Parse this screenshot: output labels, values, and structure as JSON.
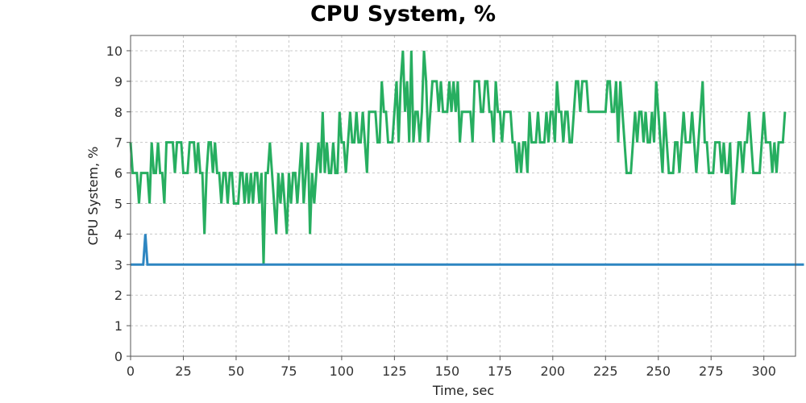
{
  "chart_data": {
    "type": "line",
    "title": "CPU System, %",
    "xlabel": "Time, sec",
    "ylabel": "CPU System, %",
    "xlim": [
      0,
      315
    ],
    "ylim": [
      0,
      10.5
    ],
    "xticks": [
      0,
      25,
      50,
      75,
      100,
      125,
      150,
      175,
      200,
      225,
      250,
      275,
      300
    ],
    "yticks": [
      0,
      1,
      2,
      3,
      4,
      5,
      6,
      7,
      8,
      9,
      10
    ],
    "grid": true,
    "x_start": 0,
    "x_step": 1,
    "series": [
      {
        "color": "#27ae60",
        "values": [
          7,
          6,
          6,
          6,
          5,
          6,
          6,
          6,
          6,
          5,
          7,
          6,
          6,
          7,
          6,
          6,
          5,
          7,
          7,
          7,
          7,
          6,
          7,
          7,
          7,
          6,
          6,
          6,
          7,
          7,
          7,
          6,
          7,
          6,
          6,
          4,
          6,
          7,
          7,
          6,
          7,
          6,
          6,
          5,
          6,
          6,
          5,
          6,
          6,
          5,
          5,
          5,
          6,
          6,
          5,
          6,
          5,
          6,
          5,
          6,
          6,
          5,
          6,
          3,
          6,
          6,
          7,
          6,
          5,
          4,
          6,
          5,
          6,
          5,
          4,
          6,
          5,
          6,
          6,
          5,
          6,
          7,
          5,
          6,
          7,
          4,
          6,
          5,
          6,
          7,
          6,
          8,
          6,
          7,
          6,
          6,
          7,
          6,
          6,
          8,
          7,
          7,
          6,
          7,
          8,
          7,
          7,
          8,
          7,
          7,
          8,
          7,
          6,
          8,
          8,
          8,
          8,
          7,
          7,
          9,
          8,
          8,
          7,
          7,
          7,
          8,
          9,
          7,
          9,
          10,
          8,
          9,
          7,
          10,
          7,
          8,
          8,
          7,
          8,
          10,
          9,
          7,
          8,
          9,
          9,
          9,
          8,
          9,
          8,
          8,
          8,
          9,
          8,
          9,
          8,
          9,
          7,
          8,
          8,
          8,
          8,
          8,
          7,
          9,
          9,
          9,
          8,
          8,
          9,
          9,
          8,
          8,
          7,
          9,
          8,
          8,
          7,
          8,
          8,
          8,
          8,
          7,
          7,
          6,
          7,
          6,
          7,
          7,
          6,
          8,
          7,
          7,
          7,
          8,
          7,
          7,
          7,
          8,
          7,
          8,
          8,
          7,
          9,
          8,
          8,
          7,
          8,
          8,
          7,
          7,
          8,
          9,
          9,
          8,
          9,
          9,
          9,
          8,
          8,
          8,
          8,
          8,
          8,
          8,
          8,
          8,
          9,
          9,
          8,
          8,
          9,
          7,
          9,
          8,
          7,
          6,
          6,
          6,
          7,
          8,
          7,
          8,
          8,
          7,
          8,
          7,
          7,
          8,
          7,
          9,
          8,
          7,
          6,
          8,
          7,
          6,
          6,
          6,
          7,
          7,
          6,
          7,
          8,
          7,
          7,
          7,
          8,
          7,
          6,
          7,
          8,
          9,
          7,
          7,
          6,
          6,
          6,
          7,
          7,
          7,
          6,
          7,
          6,
          6,
          7,
          5,
          5,
          6,
          7,
          7,
          6,
          7,
          7,
          8,
          7,
          6,
          6,
          6,
          6,
          7,
          8,
          7,
          7,
          7,
          6,
          7,
          6,
          7,
          7,
          7,
          8
        ]
      },
      {
        "color": "#2e86c1",
        "values": [
          3,
          3,
          3,
          3,
          3,
          3,
          3,
          4,
          3,
          3,
          3,
          3,
          3,
          3,
          3,
          3,
          3,
          3,
          3,
          3,
          3,
          3,
          3,
          3,
          3,
          3,
          3,
          3,
          3,
          3,
          3,
          3,
          3,
          3,
          3,
          3,
          3,
          3,
          3,
          3,
          3,
          3,
          3,
          3,
          3,
          3,
          3,
          3,
          3,
          3,
          3,
          3,
          3,
          3,
          3,
          3,
          3,
          3,
          3,
          3,
          3,
          3,
          3,
          3,
          3,
          3,
          3,
          3,
          3,
          3,
          3,
          3,
          3,
          3,
          3,
          3,
          3,
          3,
          3,
          3,
          3,
          3,
          3,
          3,
          3,
          3,
          3,
          3,
          3,
          3,
          3,
          3,
          3,
          3,
          3,
          3,
          3,
          3,
          3,
          3,
          3,
          3,
          3,
          3,
          3,
          3,
          3,
          3,
          3,
          3,
          3,
          3,
          3,
          3,
          3,
          3,
          3,
          3,
          3,
          3,
          3,
          3,
          3,
          3,
          3,
          3,
          3,
          3,
          3,
          3,
          3,
          3,
          3,
          3,
          3,
          3,
          3,
          3,
          3,
          3,
          3,
          3,
          3,
          3,
          3,
          3,
          3,
          3,
          3,
          3,
          3,
          3,
          3,
          3,
          3,
          3,
          3,
          3,
          3,
          3,
          3,
          3,
          3,
          3,
          3,
          3,
          3,
          3,
          3,
          3,
          3,
          3,
          3,
          3,
          3,
          3,
          3,
          3,
          3,
          3,
          3,
          3,
          3,
          3,
          3,
          3,
          3,
          3,
          3,
          3,
          3,
          3,
          3,
          3,
          3,
          3,
          3,
          3,
          3,
          3,
          3,
          3,
          3,
          3,
          3,
          3,
          3,
          3,
          3,
          3,
          3,
          3,
          3,
          3,
          3,
          3,
          3,
          3,
          3,
          3,
          3,
          3,
          3,
          3,
          3,
          3,
          3,
          3,
          3,
          3,
          3,
          3,
          3,
          3,
          3,
          3,
          3,
          3,
          3,
          3,
          3,
          3,
          3,
          3,
          3,
          3,
          3,
          3,
          3,
          3,
          3,
          3,
          3,
          3,
          3,
          3,
          3,
          3,
          3,
          3,
          3,
          3,
          3,
          3,
          3,
          3,
          3,
          3,
          3,
          3,
          3,
          3,
          3,
          3,
          3,
          3,
          3,
          3,
          3,
          3,
          3,
          3,
          3,
          3,
          3,
          3,
          3,
          3,
          3,
          3,
          3,
          3,
          3,
          3,
          3,
          3,
          3,
          3,
          3,
          3,
          3,
          3,
          3,
          3,
          3,
          3,
          3,
          3,
          3,
          3,
          3,
          3,
          3,
          3,
          3,
          3,
          3,
          3,
          3,
          3
        ]
      }
    ]
  }
}
